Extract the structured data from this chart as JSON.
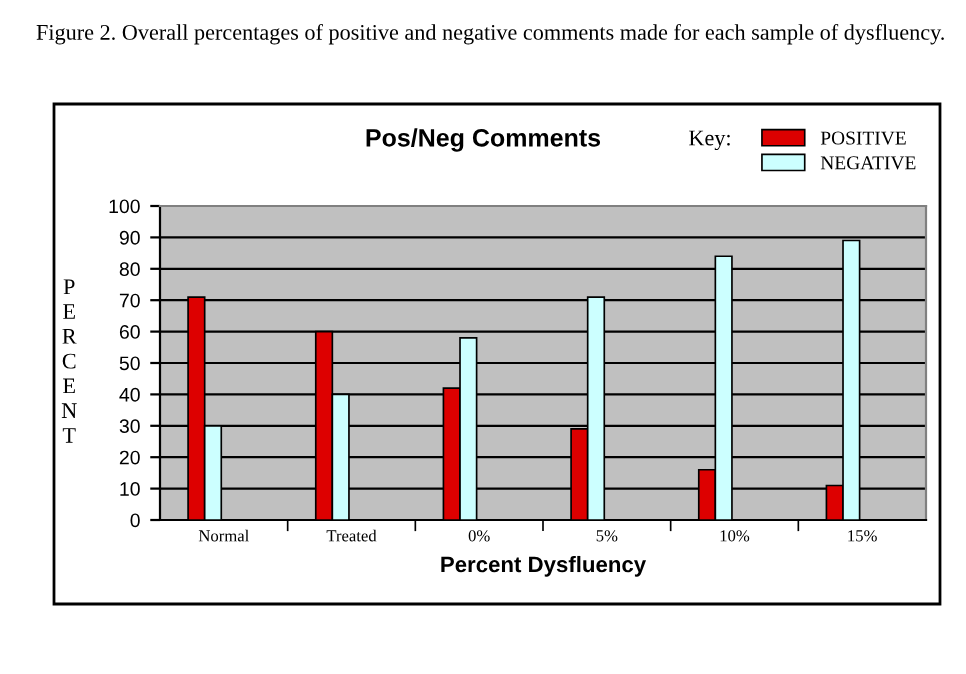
{
  "chart_data": {
    "type": "bar",
    "title": "Pos/Neg Comments",
    "xlabel": "Percent Dysfluency",
    "ylabel": "PERCENT",
    "legend_title": "Key:",
    "annotations": [
      "Figure 2. Overall percentages of positive and negative comments made for each sample of dysfluency."
    ],
    "categories": [
      "Normal",
      "Treated",
      "0%",
      "5%",
      "10%",
      "15%"
    ],
    "series": [
      {
        "name": "POSITIVE",
        "color": "#dd0000",
        "values": [
          71,
          60,
          42,
          29,
          16,
          11
        ]
      },
      {
        "name": "NEGATIVE",
        "color": "#ccffff",
        "values": [
          30,
          40,
          58,
          71,
          84,
          89
        ]
      }
    ],
    "ylim": [
      0,
      100
    ],
    "yticks": [
      0,
      10,
      20,
      30,
      40,
      50,
      60,
      70,
      80,
      90,
      100
    ],
    "grid": "y",
    "legend": "top right"
  }
}
